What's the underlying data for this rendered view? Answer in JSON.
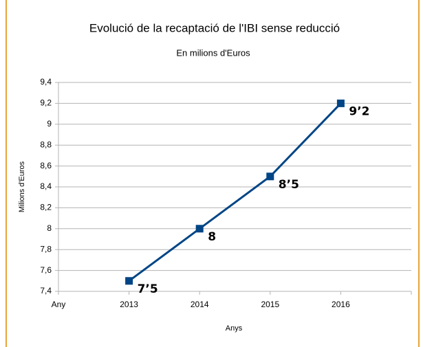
{
  "chart_data": {
    "type": "line",
    "title": "Evolució de la recaptació de l'IBI sense reducció",
    "subtitle": "En milions d'Euros",
    "y_label": "Milions d'Euros",
    "x_label": "Anys",
    "categories": [
      "Any",
      "2013",
      "2014",
      "2015",
      "2016",
      null
    ],
    "series": [
      {
        "name": "IBI",
        "color": "#004586",
        "values": [
          null,
          7.5,
          8,
          8.5,
          9.2,
          null
        ],
        "value_labels": [
          null,
          "7’5",
          "8",
          "8’5",
          "9’2",
          null
        ]
      }
    ],
    "ylim": [
      7.4,
      9.4
    ],
    "yticks": [
      {
        "value": 7.4,
        "label": "7,4"
      },
      {
        "value": 7.6,
        "label": "7,6"
      },
      {
        "value": 7.8,
        "label": "7,8"
      },
      8,
      {
        "value": 8.2,
        "label": "8,2"
      },
      {
        "value": 8.4,
        "label": "8,4"
      },
      {
        "value": 8.6,
        "label": "8,6"
      },
      {
        "value": 8.8,
        "label": "8,8"
      },
      9,
      {
        "value": 9.2,
        "label": "9,2"
      },
      {
        "value": 9.4,
        "label": "9,4"
      }
    ],
    "grid": true,
    "legend": false
  }
}
